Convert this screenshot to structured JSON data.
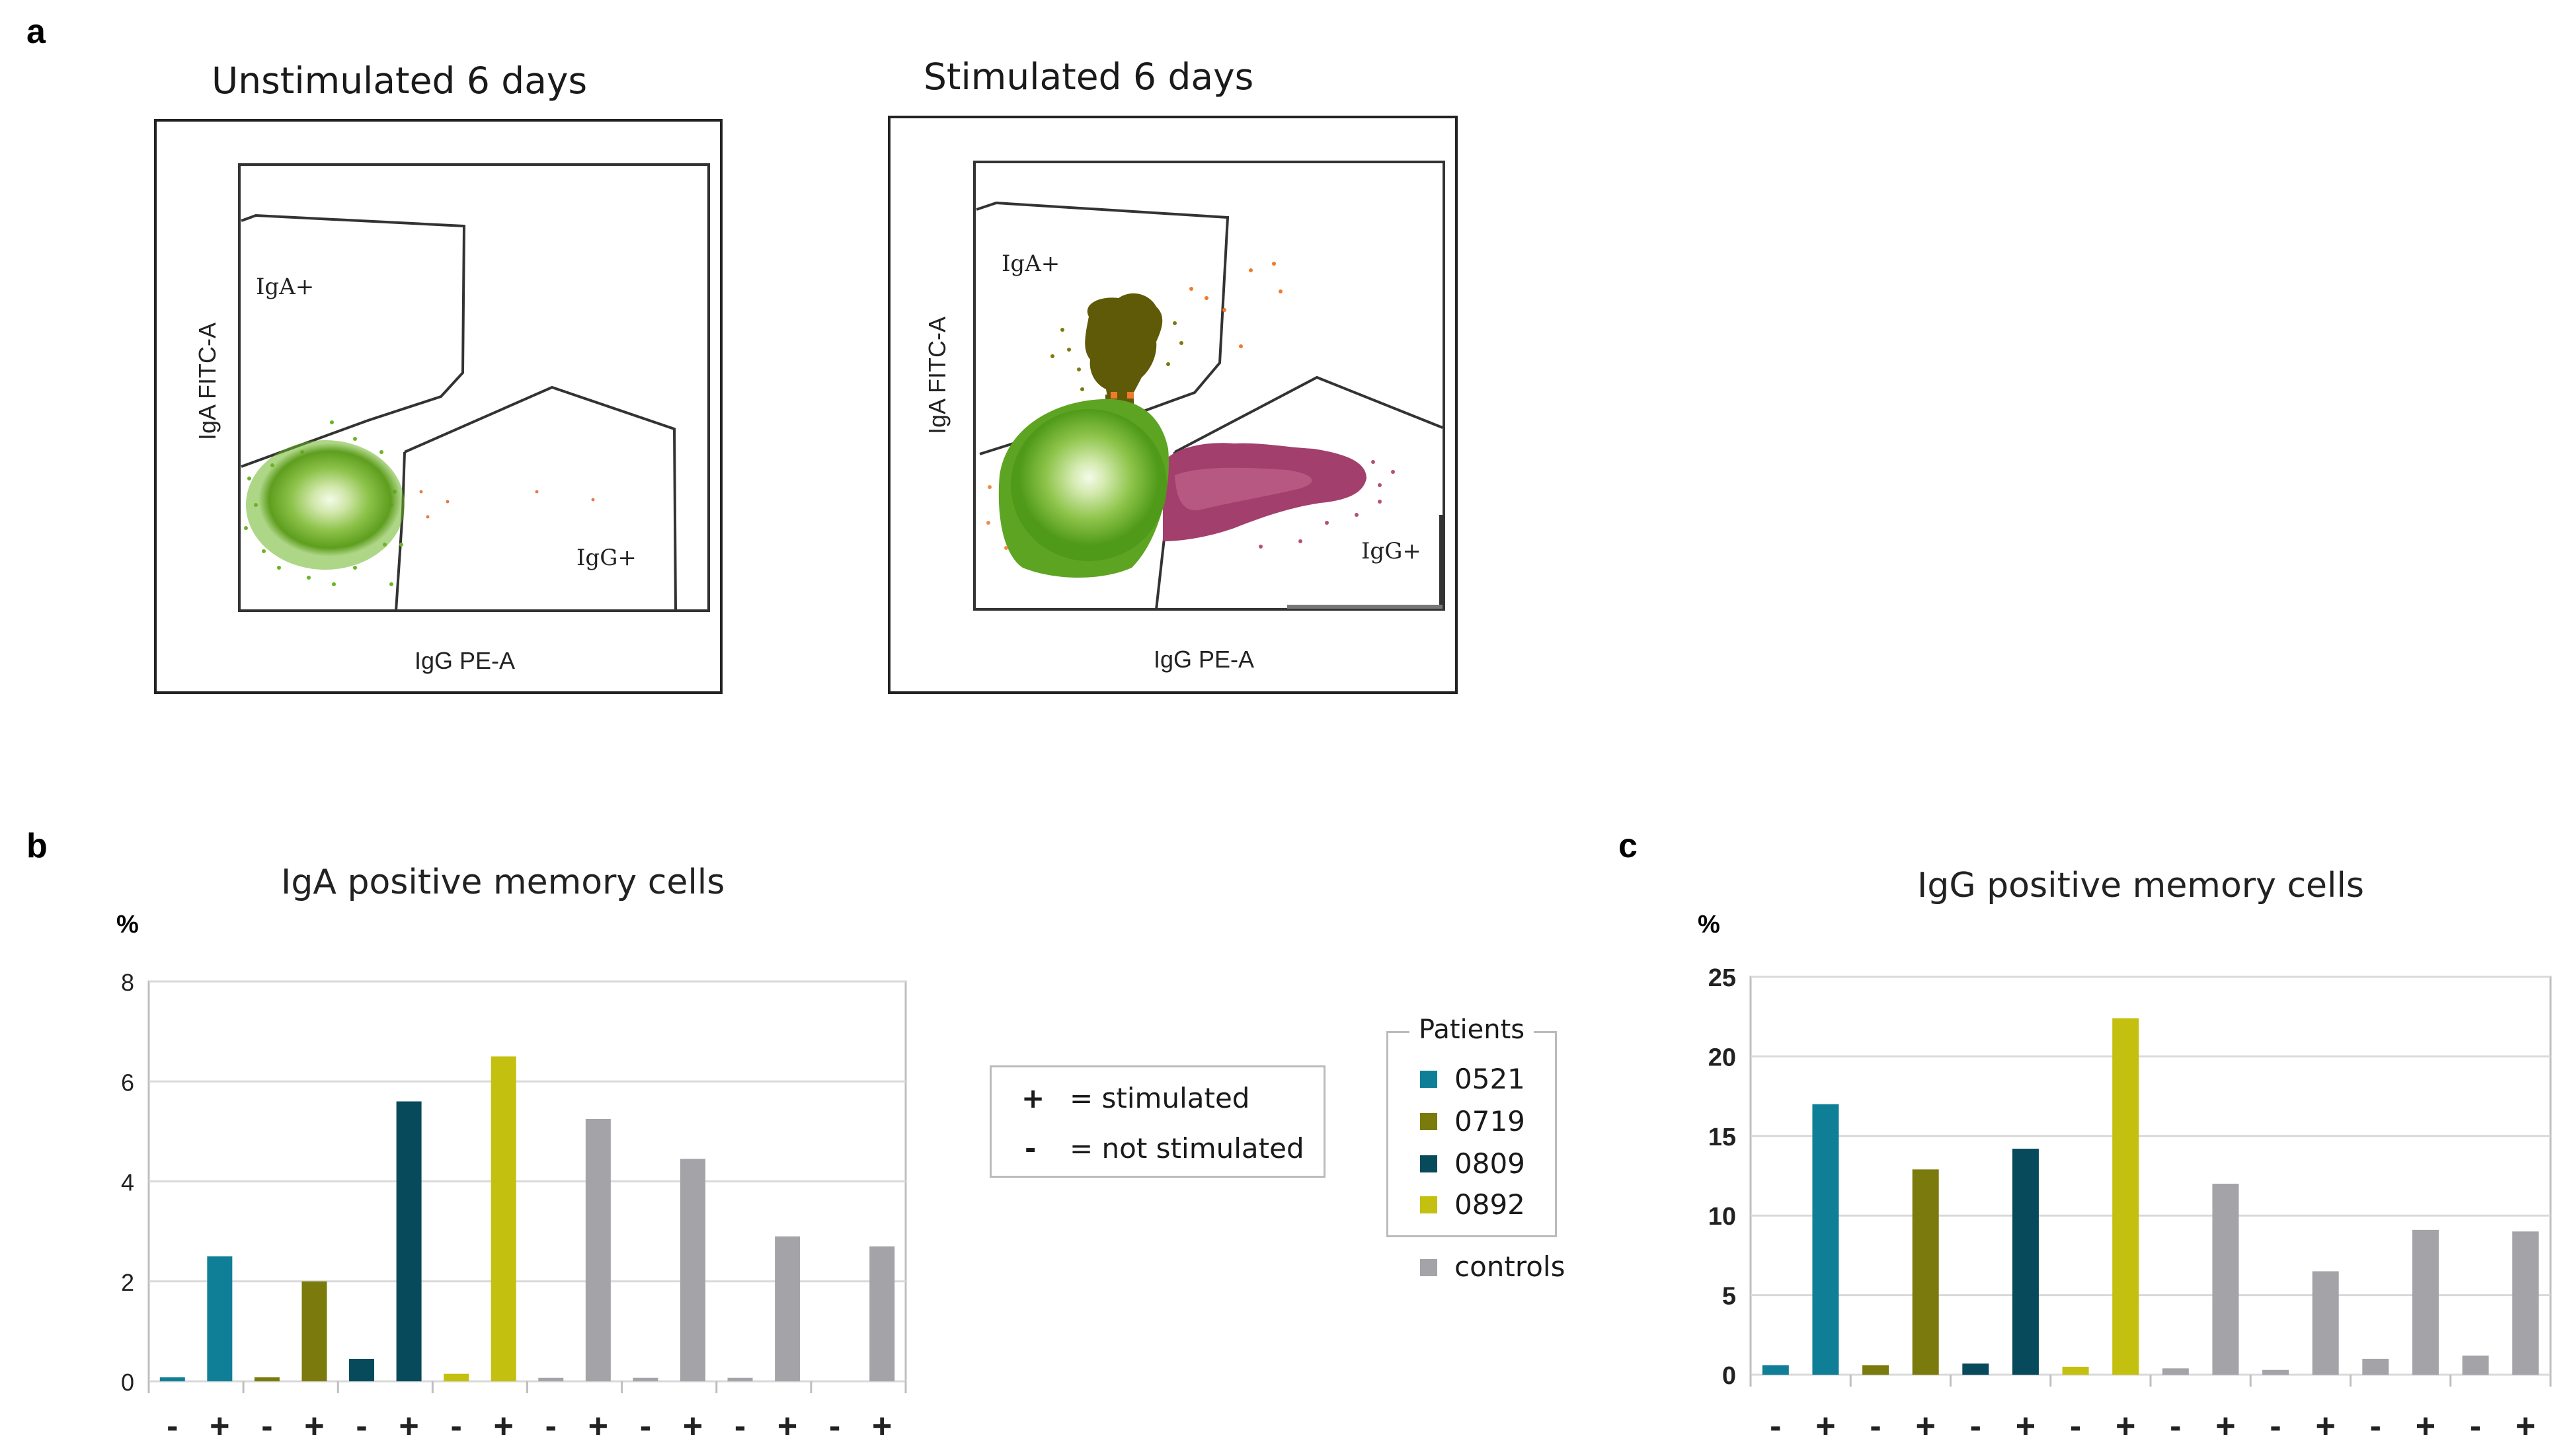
{
  "panels": {
    "a": {
      "letter": "a",
      "left_plot": {
        "title": "Unstimulated 6 days",
        "x_axis": "IgG PE-A",
        "y_axis": "IgA FITC-A",
        "gate_iga": "IgA+",
        "gate_igg": "IgG+"
      },
      "right_plot": {
        "title": "Stimulated 6 days",
        "x_axis": "IgG PE-A",
        "y_axis": "IgA FITC-A",
        "gate_iga": "IgA+",
        "gate_igg": "IgG+"
      }
    },
    "b": {
      "letter": "b"
    },
    "c": {
      "letter": "c"
    }
  },
  "stim_legend": {
    "plus_symbol": "+",
    "plus_text": "= stimulated",
    "minus_symbol": "-",
    "minus_text": "= not stimulated"
  },
  "patients_legend": {
    "title": "Patients",
    "items": [
      {
        "label": "0521",
        "color": "#0f7f97"
      },
      {
        "label": "0719",
        "color": "#7b7a0d"
      },
      {
        "label": "0809",
        "color": "#074a5c"
      },
      {
        "label": "0892",
        "color": "#c3c00f"
      }
    ],
    "controls": {
      "label": "controls",
      "color": "#a3a3a8"
    }
  },
  "colors": {
    "flow_green": "#69b025",
    "flow_olive": "#5f5a08",
    "flow_magenta": "#a23f6c",
    "flow_orange": "#f08a3a",
    "grid": "#d9d9d9",
    "axis": "#bfbfbf"
  },
  "chart_data": [
    {
      "type": "bar",
      "title": "IgA positive memory cells",
      "ylabel": "%",
      "ylim": [
        0,
        8
      ],
      "yticks": [
        "0",
        "2",
        "4",
        "6",
        "8"
      ],
      "ytick_values": [
        0,
        2,
        4,
        6,
        8
      ],
      "categories": [
        "-",
        "+",
        "-",
        "+",
        "-",
        "+",
        "-",
        "+",
        "-",
        "+",
        "-",
        "+",
        "-",
        "+",
        "-",
        "+"
      ],
      "groups": [
        "0521",
        "0719",
        "0809",
        "0892",
        "controls",
        "controls",
        "controls",
        "controls"
      ],
      "values": [
        0.08,
        2.5,
        0.08,
        2.0,
        0.45,
        5.6,
        0.15,
        6.5,
        0.07,
        5.25,
        0.07,
        4.45,
        0.07,
        2.9,
        0.0,
        2.7
      ],
      "colors": [
        "#0f7f97",
        "#0f7f97",
        "#7b7a0d",
        "#7b7a0d",
        "#074a5c",
        "#074a5c",
        "#c3c00f",
        "#c3c00f",
        "#a3a3a8",
        "#a3a3a8",
        "#a3a3a8",
        "#a3a3a8",
        "#a3a3a8",
        "#a3a3a8",
        "#a3a3a8",
        "#a3a3a8"
      ]
    },
    {
      "type": "bar",
      "title": "IgG positive memory cells",
      "ylabel": "%",
      "ylim": [
        0,
        25
      ],
      "yticks": [
        "0",
        "5",
        "10",
        "15",
        "20",
        "25"
      ],
      "ytick_values": [
        0,
        5,
        10,
        15,
        20,
        25
      ],
      "categories": [
        "-",
        "+",
        "-",
        "+",
        "-",
        "+",
        "-",
        "+",
        "-",
        "+",
        "-",
        "+",
        "-",
        "+",
        "-",
        "+"
      ],
      "groups": [
        "0521",
        "0719",
        "0809",
        "0892",
        "controls",
        "controls",
        "controls",
        "controls"
      ],
      "values": [
        0.6,
        17.0,
        0.6,
        12.9,
        0.7,
        14.2,
        0.5,
        22.4,
        0.4,
        12.0,
        0.3,
        6.5,
        1.0,
        9.1,
        1.2,
        9.0
      ],
      "colors": [
        "#0f7f97",
        "#0f7f97",
        "#7b7a0d",
        "#7b7a0d",
        "#074a5c",
        "#074a5c",
        "#c3c00f",
        "#c3c00f",
        "#a3a3a8",
        "#a3a3a8",
        "#a3a3a8",
        "#a3a3a8",
        "#a3a3a8",
        "#a3a3a8",
        "#a3a3a8",
        "#a3a3a8"
      ]
    }
  ]
}
